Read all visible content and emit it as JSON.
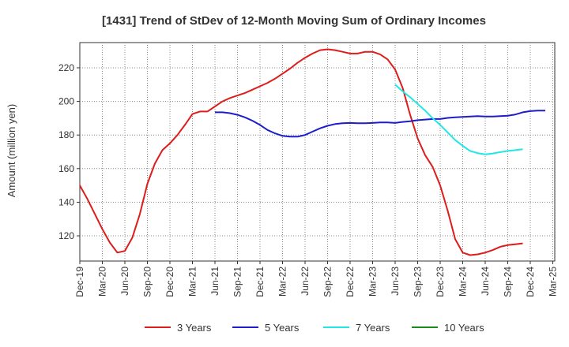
{
  "chart_data": {
    "type": "line",
    "title": "[1431]  Trend of StDev of 12-Month Moving Sum of Ordinary Incomes",
    "ylabel": "Amount (million yen)",
    "xlabel": "",
    "ylim": [
      105,
      235
    ],
    "y_ticks": [
      120,
      140,
      160,
      180,
      200,
      220
    ],
    "x_ticks": [
      "Dec-19",
      "Mar-20",
      "Jun-20",
      "Sep-20",
      "Dec-20",
      "Mar-21",
      "Jun-21",
      "Sep-21",
      "Dec-21",
      "Mar-22",
      "Jun-22",
      "Sep-22",
      "Dec-22",
      "Mar-23",
      "Jun-23",
      "Sep-23",
      "Dec-23",
      "Mar-24",
      "Jun-24",
      "Sep-24",
      "Dec-24",
      "Mar-25"
    ],
    "grid": true,
    "legend_position": "bottom",
    "series": [
      {
        "name": "3 Years",
        "color": "#dd1c1c",
        "start": "Dec-19",
        "values": [
          150,
          142,
          133,
          124,
          116,
          110,
          111,
          119,
          133,
          151,
          163,
          171,
          175,
          180,
          186,
          192.5,
          194,
          194,
          197,
          200,
          202,
          203.5,
          205,
          207,
          209,
          211,
          213.5,
          216.5,
          219.5,
          223,
          226,
          228.5,
          230.5,
          231,
          230.5,
          229.5,
          228.5,
          228.5,
          229.5,
          229.5,
          228,
          225,
          219,
          208,
          192,
          178,
          168,
          161,
          150,
          135,
          118,
          110,
          108.5,
          109,
          110,
          111.5,
          113.5,
          114.5,
          115,
          115.5
        ]
      },
      {
        "name": "5 Years",
        "color": "#1d1dcc",
        "start": "Jun-21",
        "values": [
          193.5,
          193.5,
          193,
          192,
          190.5,
          188.5,
          186,
          183,
          181,
          179.5,
          179,
          179,
          180,
          182,
          184,
          185.5,
          186.5,
          187,
          187.2,
          187,
          187,
          187.2,
          187.5,
          187.5,
          187.2,
          187.8,
          188.2,
          188.8,
          189.2,
          189.5,
          189.5,
          190.2,
          190.5,
          190.8,
          191,
          191.2,
          191,
          191,
          191.2,
          191.5,
          192.2,
          193.5,
          194.2,
          194.5,
          194.5
        ]
      },
      {
        "name": "7 Years",
        "color": "#22e6e6",
        "start": "Jun-23",
        "values": [
          210,
          206,
          202.5,
          198.5,
          194.5,
          190,
          186,
          181.5,
          177,
          173.5,
          170.5,
          169.2,
          168.5,
          169,
          169.8,
          170.5,
          171,
          171.5
        ]
      },
      {
        "name": "10 Years",
        "color": "#1a8a1a",
        "start": "",
        "values": []
      }
    ]
  }
}
